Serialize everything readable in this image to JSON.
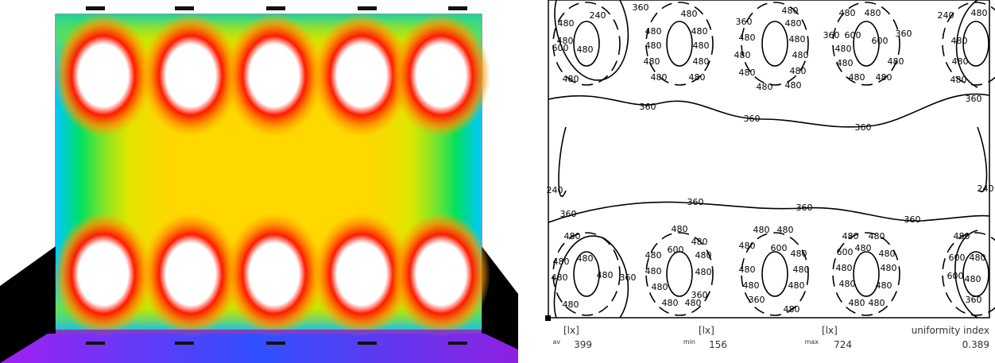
{
  "isolines": {
    "labels": [
      240,
      360,
      480,
      360,
      480,
      480,
      480,
      240,
      480,
      480,
      480,
      600,
      480,
      480,
      480,
      480,
      480,
      480,
      480,
      480,
      480,
      480,
      480,
      480,
      480,
      480,
      480,
      480,
      480,
      480,
      480,
      360,
      600,
      600,
      360,
      480,
      480,
      480,
      480,
      480,
      480,
      480,
      480,
      360,
      360,
      360,
      360,
      240,
      240,
      360,
      360,
      360,
      360,
      480,
      480,
      480,
      480,
      480,
      360,
      480,
      480,
      480,
      600,
      480,
      480,
      480,
      480,
      480,
      360,
      480,
      480,
      480,
      480,
      480,
      480,
      600,
      480,
      480,
      480,
      480,
      360,
      480,
      480,
      480,
      600,
      480,
      480,
      480,
      480,
      480,
      480,
      480,
      480,
      480,
      600,
      480,
      600,
      480,
      360
    ]
  },
  "stats": [
    {
      "sub": "av",
      "unit": "[lx]",
      "value": 399
    },
    {
      "sub": "min",
      "unit": "[lx]",
      "value": 156
    },
    {
      "sub": "max",
      "unit": "[lx]",
      "value": 724
    },
    {
      "label": "uniformity index",
      "value": 0.389
    }
  ]
}
